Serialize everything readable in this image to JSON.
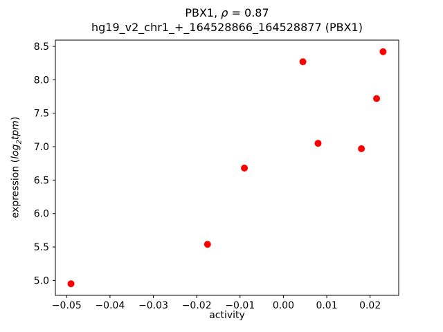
{
  "title": {
    "line1_prefix": "PBX1, ",
    "line1_rho": "ρ",
    "line1_suffix": " = 0.87",
    "line2": "hg19_v2_chr1_+_164528866_164528877 (PBX1)"
  },
  "axes": {
    "xlabel": "activity",
    "ylabel_prefix": "expression (",
    "ylabel_log": "log",
    "ylabel_sub": "2",
    "ylabel_tpm": "tpm",
    "ylabel_suffix": ")"
  },
  "chart_data": {
    "type": "scatter",
    "title": "PBX1, ρ = 0.87\nhg19_v2_chr1_+_164528866_164528877 (PBX1)",
    "xlabel": "activity",
    "ylabel": "expression (log2 tpm)",
    "legend": "none",
    "grid": false,
    "xlim": [
      -0.0526,
      0.0266
    ],
    "ylim": [
      4.7765,
      8.5935
    ],
    "marker_color": "#ff0000",
    "axis_color": "#000000",
    "xticks": [
      {
        "v": -0.05,
        "label": "−0.05"
      },
      {
        "v": -0.04,
        "label": "−0.04"
      },
      {
        "v": -0.03,
        "label": "−0.03"
      },
      {
        "v": -0.02,
        "label": "−0.02"
      },
      {
        "v": -0.01,
        "label": "−0.01"
      },
      {
        "v": 0.0,
        "label": "0.00"
      },
      {
        "v": 0.01,
        "label": "0.01"
      },
      {
        "v": 0.02,
        "label": "0.02"
      }
    ],
    "yticks": [
      {
        "v": 5.0,
        "label": "5.0"
      },
      {
        "v": 5.5,
        "label": "5.5"
      },
      {
        "v": 6.0,
        "label": "6.0"
      },
      {
        "v": 6.5,
        "label": "6.5"
      },
      {
        "v": 7.0,
        "label": "7.0"
      },
      {
        "v": 7.5,
        "label": "7.5"
      },
      {
        "v": 8.0,
        "label": "8.0"
      },
      {
        "v": 8.5,
        "label": "8.5"
      }
    ],
    "points": [
      {
        "x": -0.049,
        "y": 4.95
      },
      {
        "x": -0.0175,
        "y": 5.54
      },
      {
        "x": -0.009,
        "y": 6.68
      },
      {
        "x": 0.0045,
        "y": 8.27
      },
      {
        "x": 0.008,
        "y": 7.05
      },
      {
        "x": 0.018,
        "y": 6.97
      },
      {
        "x": 0.0215,
        "y": 7.72
      },
      {
        "x": 0.023,
        "y": 8.42
      }
    ]
  }
}
